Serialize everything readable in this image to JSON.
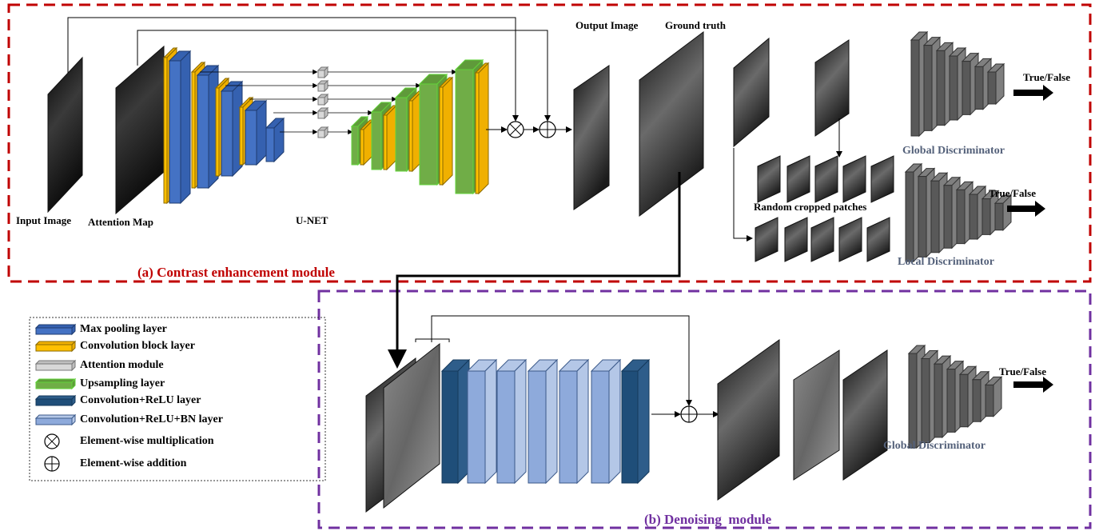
{
  "module_a": {
    "title": "(a) Contrast enhancement module",
    "input_image": "Input Image",
    "attention_map": "Attention Map",
    "unet": "U-NET",
    "output_image": "Output Image",
    "ground_truth": "Ground truth",
    "random_patches": "Random cropped patches",
    "global_discriminator": "Global Discriminator",
    "global_output": "True/False",
    "local_discriminator": "Local Discriminator",
    "local_output": "True/False"
  },
  "module_b": {
    "title": "(b) Denoising  module",
    "global_discriminator": "Global Discriminator",
    "output": "True/False"
  },
  "legend": {
    "items": [
      "Max pooling layer",
      "Convolution block layer",
      "Attention module",
      "Upsampling layer",
      "Convolution+ReLU layer",
      "Convolution+ReLU+BN layer",
      "Element-wise multiplication",
      "Element-wise addition"
    ]
  }
}
